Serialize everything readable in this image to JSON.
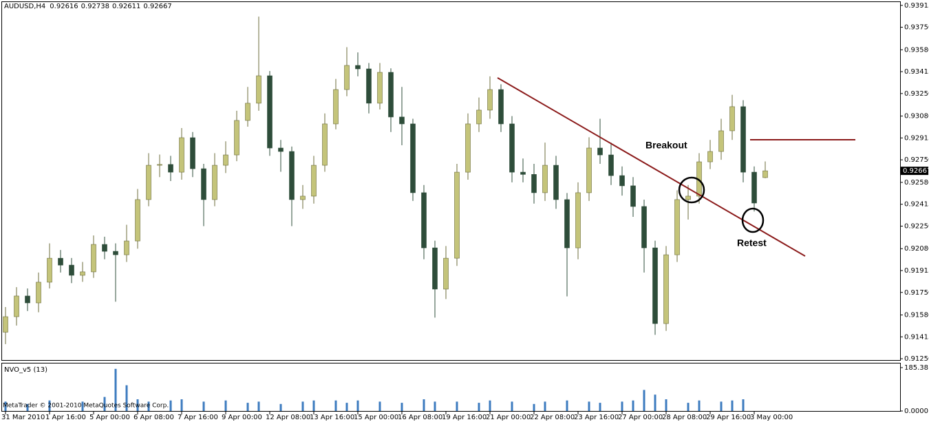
{
  "chart_data": {
    "type": "candlestick",
    "symbol": "AUDUSD,H4",
    "categories": [
      "31 Mar 2010",
      null,
      null,
      null,
      "1 Apr 16:00",
      null,
      null,
      null,
      "5 Apr 00:00",
      null,
      null,
      null,
      "6 Apr 08:00",
      null,
      null,
      null,
      "7 Apr 16:00",
      null,
      null,
      null,
      "9 Apr 00:00",
      null,
      null,
      null,
      "12 Apr 08:00",
      null,
      null,
      null,
      "13 Apr 16:00",
      null,
      null,
      null,
      "15 Apr 00:00",
      null,
      null,
      null,
      "16 Apr 08:00",
      null,
      null,
      null,
      "19 Apr 16:00",
      null,
      null,
      null,
      "21 Apr 00:00",
      null,
      null,
      null,
      "22 Apr 08:00",
      null,
      null,
      null,
      "23 Apr 16:00",
      null,
      null,
      null,
      "27 Apr 00:00",
      null,
      null,
      null,
      "28 Apr 08:00",
      null,
      null,
      null,
      "29 Apr 16:00",
      null,
      null,
      null,
      "3 May 00:00",
      null
    ],
    "open": [
      0.9145,
      0.91567,
      0.91723,
      0.91671,
      0.91827,
      0.92008,
      0.91956,
      0.91879,
      0.91905,
      0.92112,
      0.9206,
      0.92034,
      0.92138,
      0.9245,
      0.92709,
      0.92715,
      0.92657,
      0.92917,
      0.92683,
      0.9245,
      0.92709,
      0.92787,
      0.93047,
      0.93177,
      0.93384,
      0.92839,
      0.92813,
      0.9245,
      0.92476,
      0.92709,
      0.93021,
      0.9328,
      0.93462,
      0.93436,
      0.93177,
      0.9341,
      0.93073,
      0.93021,
      0.92502,
      0.92086,
      0.91775,
      0.92008,
      0.92657,
      0.93021,
      0.93125,
      0.9328,
      0.93021,
      0.92657,
      0.9264,
      0.92502,
      0.92709,
      0.9245,
      0.92086,
      0.92502,
      0.92839,
      0.92787,
      0.92631,
      0.92554,
      0.92398,
      0.92086,
      0.91515,
      0.92034,
      0.9245,
      0.92476,
      0.92735,
      0.92813,
      0.92969,
      0.93151,
      0.92657,
      0.92616
    ],
    "high": [
      0.9164,
      0.9179,
      0.9178,
      0.919,
      0.9212,
      0.9207,
      0.9201,
      0.9198,
      0.9218,
      0.9217,
      0.9212,
      0.9226,
      0.9253,
      0.928,
      0.9279,
      0.9278,
      0.9299,
      0.9296,
      0.9272,
      0.928,
      0.9289,
      0.9312,
      0.933,
      0.9383,
      0.9342,
      0.929,
      0.9285,
      0.9256,
      0.9278,
      0.931,
      0.9336,
      0.936,
      0.9356,
      0.9348,
      0.9348,
      0.9344,
      0.933,
      0.9306,
      0.9256,
      0.9214,
      0.921,
      0.9272,
      0.931,
      0.9322,
      0.9338,
      0.9332,
      0.9308,
      0.9276,
      0.9272,
      0.9288,
      0.9278,
      0.925,
      0.9258,
      0.9292,
      0.9306,
      0.9288,
      0.927,
      0.9262,
      0.9245,
      0.9214,
      0.921,
      0.9252,
      0.9256,
      0.928,
      0.929,
      0.9306,
      0.9324,
      0.932,
      0.927,
      0.92738
    ],
    "low": [
      0.9136,
      0.915,
      0.9161,
      0.916,
      0.9178,
      0.919,
      0.9182,
      0.9183,
      0.9186,
      0.92,
      0.9168,
      0.9198,
      0.9208,
      0.924,
      0.9262,
      0.9259,
      0.926,
      0.9262,
      0.9225,
      0.924,
      0.9265,
      0.9274,
      0.93,
      0.9312,
      0.9278,
      0.9266,
      0.9225,
      0.9238,
      0.9242,
      0.9266,
      0.9298,
      0.9323,
      0.9338,
      0.931,
      0.9313,
      0.9296,
      0.9286,
      0.9244,
      0.92,
      0.9156,
      0.917,
      0.9195,
      0.926,
      0.9296,
      0.9306,
      0.9296,
      0.9258,
      0.9258,
      0.9242,
      0.9244,
      0.9238,
      0.9172,
      0.92,
      0.9244,
      0.9272,
      0.9256,
      0.9248,
      0.9232,
      0.919,
      0.9143,
      0.9146,
      0.9198,
      0.923,
      0.9242,
      0.9268,
      0.9275,
      0.929,
      0.9258,
      0.9236,
      0.92611
    ],
    "close": [
      0.91567,
      0.91723,
      0.91671,
      0.91827,
      0.92008,
      0.91956,
      0.91879,
      0.91905,
      0.92112,
      0.9206,
      0.92034,
      0.92138,
      0.9245,
      0.92709,
      0.92715,
      0.92657,
      0.92917,
      0.92683,
      0.9245,
      0.92709,
      0.92787,
      0.93047,
      0.93177,
      0.93384,
      0.92839,
      0.92813,
      0.9245,
      0.92476,
      0.92709,
      0.93021,
      0.9328,
      0.93462,
      0.93436,
      0.93177,
      0.9341,
      0.93073,
      0.93021,
      0.92502,
      0.92086,
      0.91775,
      0.92008,
      0.92657,
      0.93021,
      0.93125,
      0.9328,
      0.93021,
      0.92657,
      0.9264,
      0.92502,
      0.92709,
      0.9245,
      0.92086,
      0.92502,
      0.92839,
      0.92787,
      0.92631,
      0.92554,
      0.92398,
      0.92086,
      0.91515,
      0.92034,
      0.9245,
      0.92476,
      0.92735,
      0.92813,
      0.92969,
      0.93151,
      0.92657,
      0.92424,
      0.92667
    ],
    "up_color": "#c4c47a",
    "down_color": "#2e4d3a",
    "ylim": [
      0.9124,
      0.93945
    ],
    "yticks": [
      0.93915,
      {
        "value": 0.9375,
        "label": "0.93750"
      },
      {
        "value": 0.9358,
        "label": "0.93580"
      },
      0.93415,
      {
        "value": 0.9325,
        "label": "0.93250"
      },
      {
        "value": 0.9308,
        "label": "0.93080"
      },
      0.92915,
      {
        "value": 0.9275,
        "label": "0.92750"
      },
      {
        "value": 0.9258,
        "label": "0.92580"
      },
      0.92415,
      {
        "value": 0.9225,
        "label": "0.92250"
      },
      {
        "value": 0.9208,
        "label": "0.92080"
      },
      0.91915,
      {
        "value": 0.9175,
        "label": "0.91750"
      },
      {
        "value": 0.9158,
        "label": "0.91580"
      },
      0.91415,
      {
        "value": 0.9125,
        "label": "0.91250"
      }
    ],
    "indicator": {
      "title": "NVO_v5 (13)",
      "color": "#3c7bbf",
      "values": [
        40,
        0,
        30,
        0,
        45,
        0,
        0,
        40,
        0,
        60,
        180,
        110,
        50,
        40,
        0,
        45,
        50,
        0,
        40,
        0,
        45,
        0,
        35,
        40,
        0,
        30,
        0,
        40,
        45,
        0,
        45,
        35,
        45,
        0,
        40,
        0,
        35,
        0,
        50,
        40,
        0,
        40,
        0,
        35,
        45,
        0,
        40,
        0,
        30,
        40,
        0,
        45,
        0,
        40,
        35,
        0,
        40,
        45,
        90,
        70,
        50,
        0,
        35,
        45,
        0,
        40,
        45,
        50,
        0,
        0
      ],
      "ylim": [
        0,
        185.3814
      ],
      "yticks": [
        185.3814,
        {
          "value": 0,
          "label": "0.0000"
        }
      ]
    },
    "annotations": [
      "Breakout",
      "Retest"
    ],
    "copyright": "MetaTrader © 2001-2010 MetaQuotes Software Corp."
  }
}
